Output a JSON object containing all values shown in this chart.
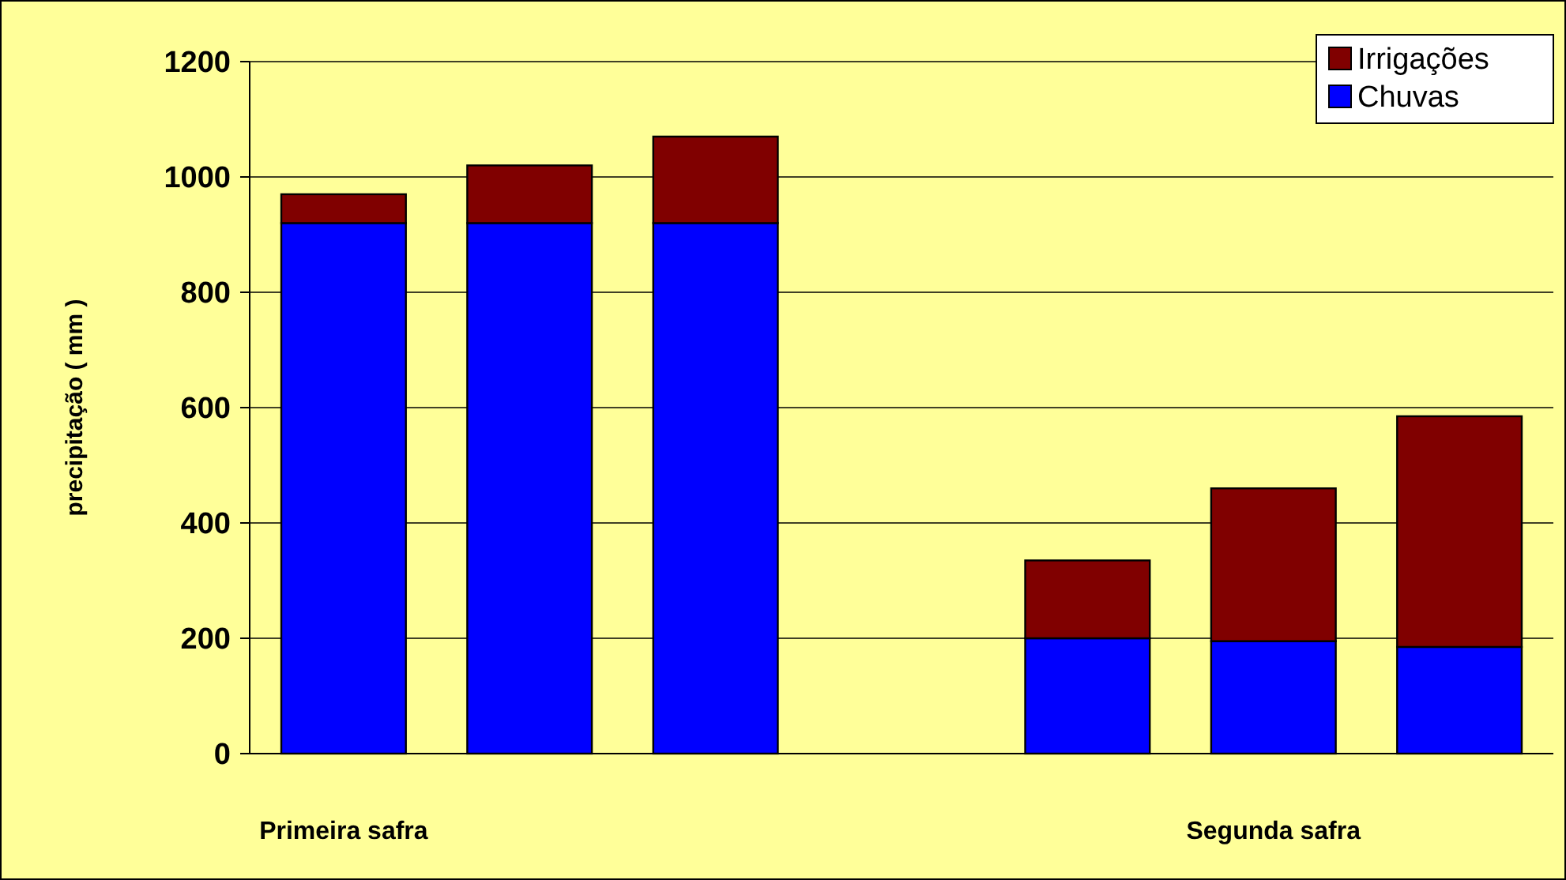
{
  "chart_data": {
    "type": "bar",
    "stacked": true,
    "ylabel": "precipitação ( mm )",
    "categories": [
      "Primeira safra",
      null,
      null,
      null,
      null,
      "Segunda safra",
      null
    ],
    "series": [
      {
        "name": "Chuvas",
        "color": "#0000ff",
        "values": [
          920,
          920,
          920,
          null,
          200,
          195,
          185
        ]
      },
      {
        "name": "Irrigações",
        "color": "#800000",
        "values": [
          50,
          100,
          150,
          null,
          135,
          265,
          400
        ]
      }
    ],
    "ylim": [
      0,
      1200
    ],
    "yticks": [
      0,
      200,
      400,
      600,
      800,
      1000,
      1200
    ],
    "grid": "y",
    "legend": "top right"
  }
}
